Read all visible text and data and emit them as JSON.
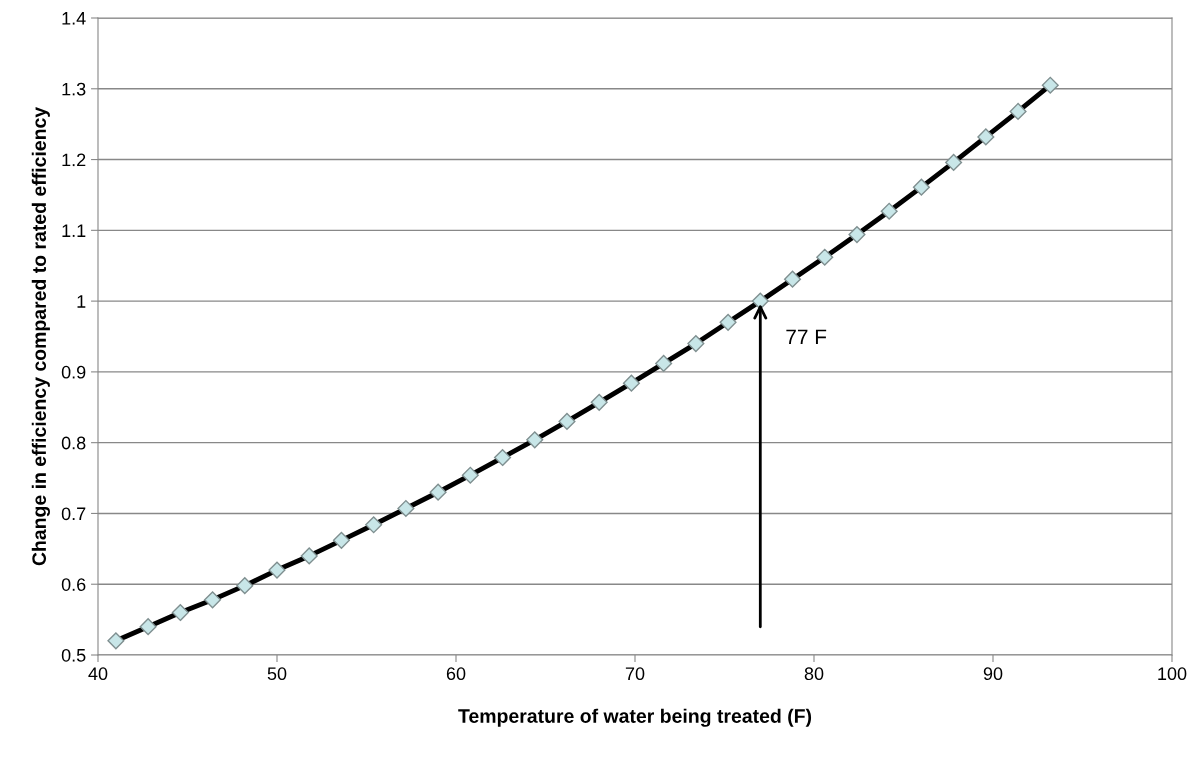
{
  "chart_data": {
    "type": "line",
    "xlabel": "Temperature of water being treated (F)",
    "ylabel": "Change in efficiency compared to rated efficiency",
    "x": [
      41,
      42.8,
      44.6,
      46.4,
      48.2,
      50,
      51.8,
      53.6,
      55.4,
      57.2,
      59,
      60.8,
      62.6,
      64.4,
      66.2,
      68,
      69.8,
      71.6,
      73.4,
      75.2,
      77,
      78.8,
      80.6,
      82.4,
      84.2,
      86,
      87.8,
      89.6,
      91.4,
      93.2
    ],
    "series": [
      {
        "color": "#000000",
        "values": [
          0.52,
          0.54,
          0.56,
          0.578,
          0.598,
          0.62,
          0.64,
          0.662,
          0.684,
          0.707,
          0.73,
          0.754,
          0.779,
          0.804,
          0.83,
          0.857,
          0.884,
          0.912,
          0.94,
          0.97,
          1.0,
          1.031,
          1.062,
          1.094,
          1.127,
          1.161,
          1.196,
          1.232,
          1.268,
          1.305
        ]
      }
    ],
    "marker": "diamond",
    "line_style": "solid",
    "xlim": [
      40,
      100
    ],
    "xticks": [
      40,
      50,
      60,
      70,
      80,
      90,
      100
    ],
    "ylim": [
      0.5,
      1.4
    ],
    "yticks": [
      0.5,
      0.6,
      0.7,
      0.8,
      0.9,
      1,
      1.1,
      1.2,
      1.3,
      1.4
    ],
    "grid": "y",
    "annotations": [
      {
        "text": "77 F",
        "x": 77,
        "y": 1.0
      }
    ]
  }
}
